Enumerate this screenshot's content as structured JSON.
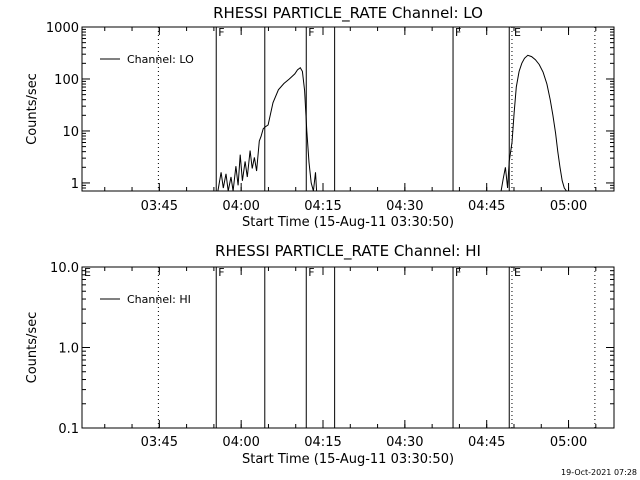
{
  "timestamp": "19-Oct-2021 07:28",
  "x_ticks": [
    "03:45",
    "04:00",
    "04:15",
    "04:30",
    "04:45",
    "05:00"
  ],
  "x_tick_minutes": [
    14.17,
    29.17,
    44.17,
    59.17,
    74.17,
    89.17
  ],
  "x_range_minutes": [
    0,
    97.5
  ],
  "chart_data": [
    {
      "type": "line",
      "title": "RHESSI PARTICLE_RATE Channel: LO",
      "xlabel": "Start Time (15-Aug-11 03:30:50)",
      "ylabel": "Counts/sec",
      "yscale": "log",
      "ylim": [
        0.7,
        1000
      ],
      "y_ticks": [
        {
          "value": 1,
          "label": "1"
        },
        {
          "value": 10,
          "label": "10"
        },
        {
          "value": 100,
          "label": "100"
        },
        {
          "value": 1000,
          "label": "1000"
        }
      ],
      "legend": {
        "label": "Channel: LO",
        "position": "top-left"
      },
      "solid_lines": [
        24.6,
        33.5,
        41.1,
        46.3,
        68.0,
        78.3
      ],
      "dotted_lines": [
        14.0,
        78.8,
        94.0
      ],
      "flags": [
        {
          "label": "F",
          "at": 24.6
        },
        {
          "label": "F",
          "at": 41.1
        },
        {
          "label": "F",
          "at": 68.0
        },
        {
          "label": "E",
          "at": 78.8
        }
      ],
      "series": [
        {
          "x": [
            24.9,
            25.5,
            25.9,
            26.4,
            26.8,
            27.3,
            27.7,
            28.2,
            28.6,
            29.0,
            29.4,
            29.9,
            30.3,
            30.8,
            31.2,
            31.6,
            32.0,
            32.5,
            32.8,
            33.2,
            33.6,
            34.1,
            35.0,
            36.0,
            37.0,
            38.0,
            39.0,
            39.5,
            40.0,
            40.4,
            40.8,
            41.2,
            41.6,
            42.0,
            42.4,
            42.8,
            43.0
          ],
          "y": [
            0.7,
            1.6,
            0.8,
            1.5,
            0.7,
            1.3,
            0.7,
            2.1,
            0.9,
            3.5,
            1.1,
            2.6,
            1.3,
            4.2,
            1.9,
            3.1,
            1.7,
            6.4,
            7.8,
            11.0,
            12.0,
            13.0,
            35.0,
            62.0,
            82.0,
            100.0,
            125.0,
            150.0,
            165.0,
            140.0,
            60.0,
            10.0,
            2.5,
            1.0,
            0.7,
            1.6,
            0.7
          ]
        },
        {
          "x": [
            76.8,
            77.2,
            77.6,
            78.0,
            78.3,
            78.8,
            79.2,
            79.6,
            80.1,
            80.6,
            81.1,
            81.7,
            82.4,
            83.1,
            83.8,
            84.5,
            85.2,
            85.8,
            86.3,
            86.8,
            87.2,
            87.6,
            88.0,
            88.4,
            88.8
          ],
          "y": [
            0.7,
            1.2,
            2.0,
            0.8,
            2.6,
            6.0,
            22.0,
            70.0,
            140.0,
            200.0,
            250.0,
            285.0,
            270.0,
            235.0,
            190.0,
            135.0,
            80.0,
            40.0,
            20.0,
            9.0,
            4.0,
            2.0,
            1.1,
            0.8,
            0.7
          ]
        }
      ]
    },
    {
      "type": "line",
      "title": "RHESSI PARTICLE_RATE Channel: HI",
      "xlabel": "Start Time (15-Aug-11 03:30:50)",
      "ylabel": "Counts/sec",
      "yscale": "log",
      "ylim": [
        0.1,
        10
      ],
      "y_ticks": [
        {
          "value": 0.1,
          "label": "0.1"
        },
        {
          "value": 1,
          "label": "1.0"
        },
        {
          "value": 10,
          "label": "10.0"
        }
      ],
      "legend": {
        "label": "Channel: HI",
        "position": "top-left"
      },
      "solid_lines": [
        24.6,
        33.5,
        41.1,
        46.3,
        68.0,
        78.3
      ],
      "dotted_lines": [
        14.0,
        78.8,
        94.0
      ],
      "flags": [
        {
          "label": "E",
          "at": 0.0
        },
        {
          "label": "F",
          "at": 24.6
        },
        {
          "label": "F",
          "at": 41.1
        },
        {
          "label": "F",
          "at": 68.0
        },
        {
          "label": "E",
          "at": 78.8
        }
      ],
      "series": []
    }
  ]
}
